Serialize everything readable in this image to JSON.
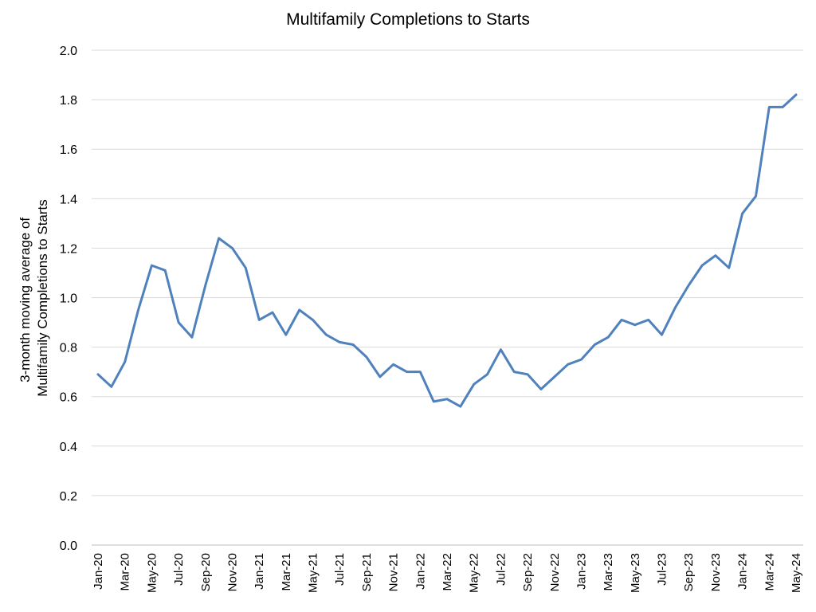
{
  "chart_data": {
    "type": "line",
    "title": "Multifamily Completions to Starts",
    "ylabel_lines": [
      "3-month moving average of",
      "Multifamily Completions to Starts"
    ],
    "ylim": [
      0,
      2.0
    ],
    "yticks": [
      "0.0",
      "0.2",
      "0.4",
      "0.6",
      "0.8",
      "1.0",
      "1.2",
      "1.4",
      "1.6",
      "1.8",
      "2.0"
    ],
    "grid": true,
    "legend": "none",
    "line_color": "#4f81bd",
    "x": [
      "Jan-20",
      "Feb-20",
      "Mar-20",
      "Apr-20",
      "May-20",
      "Jun-20",
      "Jul-20",
      "Aug-20",
      "Sep-20",
      "Oct-20",
      "Nov-20",
      "Dec-20",
      "Jan-21",
      "Feb-21",
      "Mar-21",
      "Apr-21",
      "May-21",
      "Jun-21",
      "Jul-21",
      "Aug-21",
      "Sep-21",
      "Oct-21",
      "Nov-21",
      "Dec-21",
      "Jan-22",
      "Feb-22",
      "Mar-22",
      "Apr-22",
      "May-22",
      "Jun-22",
      "Jul-22",
      "Aug-22",
      "Sep-22",
      "Oct-22",
      "Nov-22",
      "Dec-22",
      "Jan-23",
      "Feb-23",
      "Mar-23",
      "Apr-23",
      "May-23",
      "Jun-23",
      "Jul-23",
      "Aug-23",
      "Sep-23",
      "Oct-23",
      "Nov-23",
      "Dec-23",
      "Jan-24",
      "Feb-24",
      "Mar-24",
      "Apr-24",
      "May-24"
    ],
    "xtick_labels": [
      "Jan-20",
      "Mar-20",
      "May-20",
      "Jul-20",
      "Sep-20",
      "Nov-20",
      "Jan-21",
      "Mar-21",
      "May-21",
      "Jul-21",
      "Sep-21",
      "Nov-21",
      "Jan-22",
      "Mar-22",
      "May-22",
      "Jul-22",
      "Sep-22",
      "Nov-22",
      "Jan-23",
      "Mar-23",
      "May-23",
      "Jul-23",
      "Sep-23",
      "Nov-23",
      "Jan-24",
      "Mar-24",
      "May-24"
    ],
    "values": [
      0.69,
      0.64,
      0.74,
      0.95,
      1.13,
      1.11,
      0.9,
      0.84,
      1.05,
      1.24,
      1.2,
      1.12,
      0.91,
      0.94,
      0.85,
      0.95,
      0.91,
      0.85,
      0.82,
      0.81,
      0.76,
      0.68,
      0.73,
      0.7,
      0.7,
      0.58,
      0.59,
      0.56,
      0.65,
      0.69,
      0.79,
      0.7,
      0.69,
      0.63,
      0.68,
      0.73,
      0.75,
      0.81,
      0.84,
      0.91,
      0.89,
      0.91,
      0.85,
      0.96,
      1.05,
      1.13,
      1.17,
      1.12,
      1.34,
      1.41,
      1.77,
      1.77,
      1.82
    ]
  }
}
